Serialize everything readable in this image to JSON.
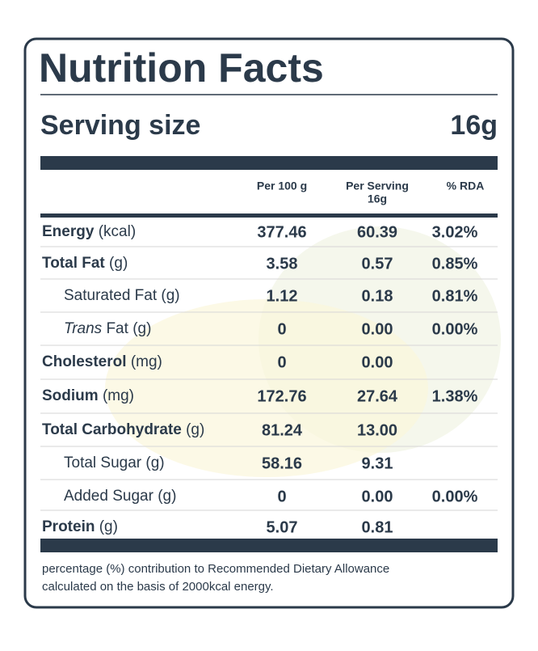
{
  "title": "Nutrition Facts",
  "serving": {
    "label": "Serving size",
    "value": "16g"
  },
  "header": {
    "per100": "Per 100 g",
    "perServing": "Per Serving",
    "perServingSize": "16g",
    "rda": "% RDA"
  },
  "rows": [
    {
      "label": "Energy",
      "unit": "(kcal)",
      "per100": "377.46",
      "perServing": "60.39",
      "rda": "3.02%"
    },
    {
      "label": "Total Fat",
      "unit": "(g)",
      "per100": "3.58",
      "perServing": "0.57",
      "rda": "0.85%"
    },
    {
      "label": "Saturated Fat",
      "unit": "(g)",
      "sub": true,
      "per100": "1.12",
      "perServing": "0.18",
      "rda": "0.81%"
    },
    {
      "label_italic": "Trans",
      "label": "Fat",
      "unit": "(g)",
      "sub": true,
      "per100": "0",
      "perServing": "0.00",
      "rda": "0.00%"
    },
    {
      "label": "Cholesterol",
      "unit": "(mg)",
      "per100": "0",
      "perServing": "0.00"
    },
    {
      "label": "Sodium",
      "unit": "(mg)",
      "per100": "172.76",
      "perServing": "27.64",
      "rda": "1.38%"
    },
    {
      "label": "Total Carbohydrate",
      "unit": "(g)",
      "per100": "81.24",
      "perServing": "13.00"
    },
    {
      "label": "Total Sugar",
      "unit": "(g)",
      "sub": true,
      "per100": "58.16",
      "perServing": "9.31"
    },
    {
      "label": "Added Sugar",
      "unit": "(g)",
      "sub": true,
      "per100": "0",
      "perServing": "0.00",
      "rda": "0.00%"
    },
    {
      "label": "Protein",
      "unit": "(g)",
      "per100": "5.07",
      "perServing": "0.81"
    }
  ],
  "footnote": [
    "percentage (%) contribution to Recommended Dietary Allowance",
    "calculated on the basis of 2000kcal energy."
  ]
}
